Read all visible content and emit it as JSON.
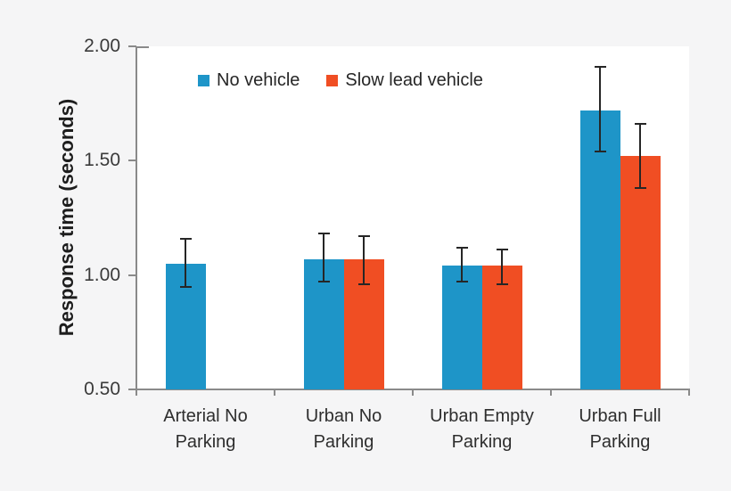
{
  "chart_data": {
    "type": "bar",
    "title": "",
    "ylabel": "Response time (seconds)",
    "xlabel": "",
    "ylim": [
      0.5,
      2.0
    ],
    "yticks": [
      2.0,
      1.5,
      1.0,
      0.5
    ],
    "ytick_labels": [
      "2.00",
      "1.50",
      "1.00",
      "0.50"
    ],
    "categories": [
      "Arterial No Parking",
      "Urban No Parking",
      "Urban Empty Parking",
      "Urban Full Parking"
    ],
    "series": [
      {
        "name": "No vehicle",
        "color": "#1E95C8",
        "values": [
          1.05,
          1.07,
          1.04,
          1.72
        ],
        "error_high": [
          1.16,
          1.18,
          1.12,
          1.91
        ],
        "error_low": [
          0.95,
          0.97,
          0.97,
          1.54
        ]
      },
      {
        "name": "Slow lead vehicle",
        "color": "#F04E23",
        "values": [
          null,
          1.07,
          1.04,
          1.52
        ],
        "error_high": [
          null,
          1.17,
          1.11,
          1.66
        ],
        "error_low": [
          null,
          0.96,
          0.96,
          1.38
        ]
      }
    ],
    "legend_position": "top-inside",
    "grid": false,
    "error_bar_color": "#262626",
    "axis_color": "#8a8a8a",
    "background_color": "#f5f5f6",
    "plot_background_color": "#ffffff"
  }
}
